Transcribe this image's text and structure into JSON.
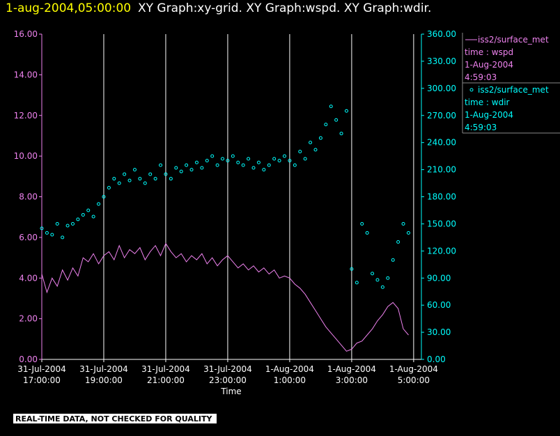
{
  "chart_data": {
    "type": "line",
    "title": "1-aug-2004,05:00:00",
    "subtitle": "XY Graph:xy-grid.  XY Graph:wspd.  XY Graph:wdir.",
    "xlabel": "Time",
    "footer": "REAL-TIME DATA, NOT CHECKED FOR QUALITY",
    "grid": true,
    "xlim": [
      "2004-07-31 17:00",
      "2004-08-01 05:15"
    ],
    "xticks": [
      {
        "value": "2004-07-31 17:00",
        "label": "31-Jul-2004 17:00:00"
      },
      {
        "value": "2004-07-31 19:00",
        "label": "31-Jul-2004 19:00:00"
      },
      {
        "value": "2004-07-31 21:00",
        "label": "31-Jul-2004 21:00:00"
      },
      {
        "value": "2004-07-31 23:00",
        "label": "31-Jul-2004 23:00:00"
      },
      {
        "value": "2004-08-01 01:00",
        "label": "1-Aug-2004 1:00:00"
      },
      {
        "value": "2004-08-01 03:00",
        "label": "1-Aug-2004 3:00:00"
      },
      {
        "value": "2004-08-01 05:00",
        "label": "1-Aug-2004 5:00:00"
      }
    ],
    "ylim": [
      0,
      16
    ],
    "yticks": [
      {
        "value": 0,
        "label": "0.00"
      },
      {
        "value": 2,
        "label": "2.00"
      },
      {
        "value": 4,
        "label": "4.00"
      },
      {
        "value": 6,
        "label": "6.00"
      },
      {
        "value": 8,
        "label": "8.00"
      },
      {
        "value": 10,
        "label": "10.00"
      },
      {
        "value": 12,
        "label": "12.00"
      },
      {
        "value": 14,
        "label": "14.00"
      },
      {
        "value": 16,
        "label": "16.00"
      }
    ],
    "y2lim": [
      0,
      360
    ],
    "y2ticks": [
      {
        "value": 0,
        "label": "0.00"
      },
      {
        "value": 30,
        "label": "30.00"
      },
      {
        "value": 60,
        "label": "60.00"
      },
      {
        "value": 90,
        "label": "90.00"
      },
      {
        "value": 120,
        "label": "120.00"
      },
      {
        "value": 150,
        "label": "150.00"
      },
      {
        "value": 180,
        "label": "180.00"
      },
      {
        "value": 210,
        "label": "210.00"
      },
      {
        "value": 240,
        "label": "240.00"
      },
      {
        "value": 270,
        "label": "270.00"
      },
      {
        "value": 300,
        "label": "300.00"
      },
      {
        "value": 330,
        "label": "330.00"
      },
      {
        "value": 360,
        "label": "360.00"
      }
    ],
    "x": [
      "2004-07-31 17:00",
      "2004-07-31 17:10",
      "2004-07-31 17:20",
      "2004-07-31 17:30",
      "2004-07-31 17:40",
      "2004-07-31 17:50",
      "2004-07-31 18:00",
      "2004-07-31 18:10",
      "2004-07-31 18:20",
      "2004-07-31 18:30",
      "2004-07-31 18:40",
      "2004-07-31 18:50",
      "2004-07-31 19:00",
      "2004-07-31 19:10",
      "2004-07-31 19:20",
      "2004-07-31 19:30",
      "2004-07-31 19:40",
      "2004-07-31 19:50",
      "2004-07-31 20:00",
      "2004-07-31 20:10",
      "2004-07-31 20:20",
      "2004-07-31 20:30",
      "2004-07-31 20:40",
      "2004-07-31 20:50",
      "2004-07-31 21:00",
      "2004-07-31 21:10",
      "2004-07-31 21:20",
      "2004-07-31 21:30",
      "2004-07-31 21:40",
      "2004-07-31 21:50",
      "2004-07-31 22:00",
      "2004-07-31 22:10",
      "2004-07-31 22:20",
      "2004-07-31 22:30",
      "2004-07-31 22:40",
      "2004-07-31 22:50",
      "2004-07-31 23:00",
      "2004-07-31 23:10",
      "2004-07-31 23:20",
      "2004-07-31 23:30",
      "2004-07-31 23:40",
      "2004-07-31 23:50",
      "2004-08-01 00:00",
      "2004-08-01 00:10",
      "2004-08-01 00:20",
      "2004-08-01 00:30",
      "2004-08-01 00:40",
      "2004-08-01 00:50",
      "2004-08-01 01:00",
      "2004-08-01 01:10",
      "2004-08-01 01:20",
      "2004-08-01 01:30",
      "2004-08-01 01:40",
      "2004-08-01 01:50",
      "2004-08-01 02:00",
      "2004-08-01 02:10",
      "2004-08-01 02:20",
      "2004-08-01 02:30",
      "2004-08-01 02:40",
      "2004-08-01 02:50",
      "2004-08-01 03:00",
      "2004-08-01 03:10",
      "2004-08-01 03:20",
      "2004-08-01 03:30",
      "2004-08-01 03:40",
      "2004-08-01 03:50",
      "2004-08-01 04:00",
      "2004-08-01 04:10",
      "2004-08-01 04:20",
      "2004-08-01 04:30",
      "2004-08-01 04:40",
      "2004-08-01 04:50"
    ],
    "series": [
      {
        "name": "iss2/surface_met",
        "legend_lines": [
          "time : wspd",
          "1-Aug-2004",
          "4:59:03"
        ],
        "color": "#ee82ee",
        "marker": "line",
        "axis": "y",
        "values": [
          4.2,
          3.3,
          4.0,
          3.6,
          4.4,
          3.9,
          4.5,
          4.1,
          5.0,
          4.8,
          5.2,
          4.7,
          5.1,
          5.3,
          4.9,
          5.6,
          5.0,
          5.4,
          5.2,
          5.5,
          4.9,
          5.3,
          5.6,
          5.1,
          5.7,
          5.3,
          5.0,
          5.2,
          4.8,
          5.1,
          4.9,
          5.2,
          4.7,
          5.0,
          4.6,
          4.9,
          5.1,
          4.8,
          4.5,
          4.7,
          4.4,
          4.6,
          4.3,
          4.5,
          4.2,
          4.4,
          4.0,
          4.1,
          4.0,
          3.7,
          3.5,
          3.2,
          2.8,
          2.4,
          2.0,
          1.6,
          1.3,
          1.0,
          0.7,
          0.4,
          0.5,
          0.8,
          0.9,
          1.2,
          1.5,
          1.9,
          2.2,
          2.6,
          2.8,
          2.5,
          1.5,
          1.2
        ]
      },
      {
        "name": "iss2/surface_met",
        "legend_lines": [
          "time : wdir",
          "1-Aug-2004",
          "4:59:03"
        ],
        "color": "#00ffff",
        "marker": "circle",
        "axis": "y2",
        "values": [
          145,
          140,
          138,
          150,
          135,
          148,
          150,
          155,
          160,
          165,
          158,
          172,
          180,
          190,
          200,
          195,
          205,
          198,
          210,
          200,
          195,
          205,
          200,
          215,
          205,
          200,
          212,
          208,
          215,
          210,
          218,
          212,
          220,
          225,
          215,
          222,
          220,
          225,
          218,
          215,
          222,
          212,
          218,
          210,
          215,
          222,
          220,
          225,
          220,
          215,
          230,
          222,
          240,
          232,
          245,
          260,
          280,
          265,
          250,
          275,
          100,
          85,
          150,
          140,
          95,
          88,
          80,
          90,
          110,
          130,
          150,
          140
        ]
      }
    ]
  }
}
